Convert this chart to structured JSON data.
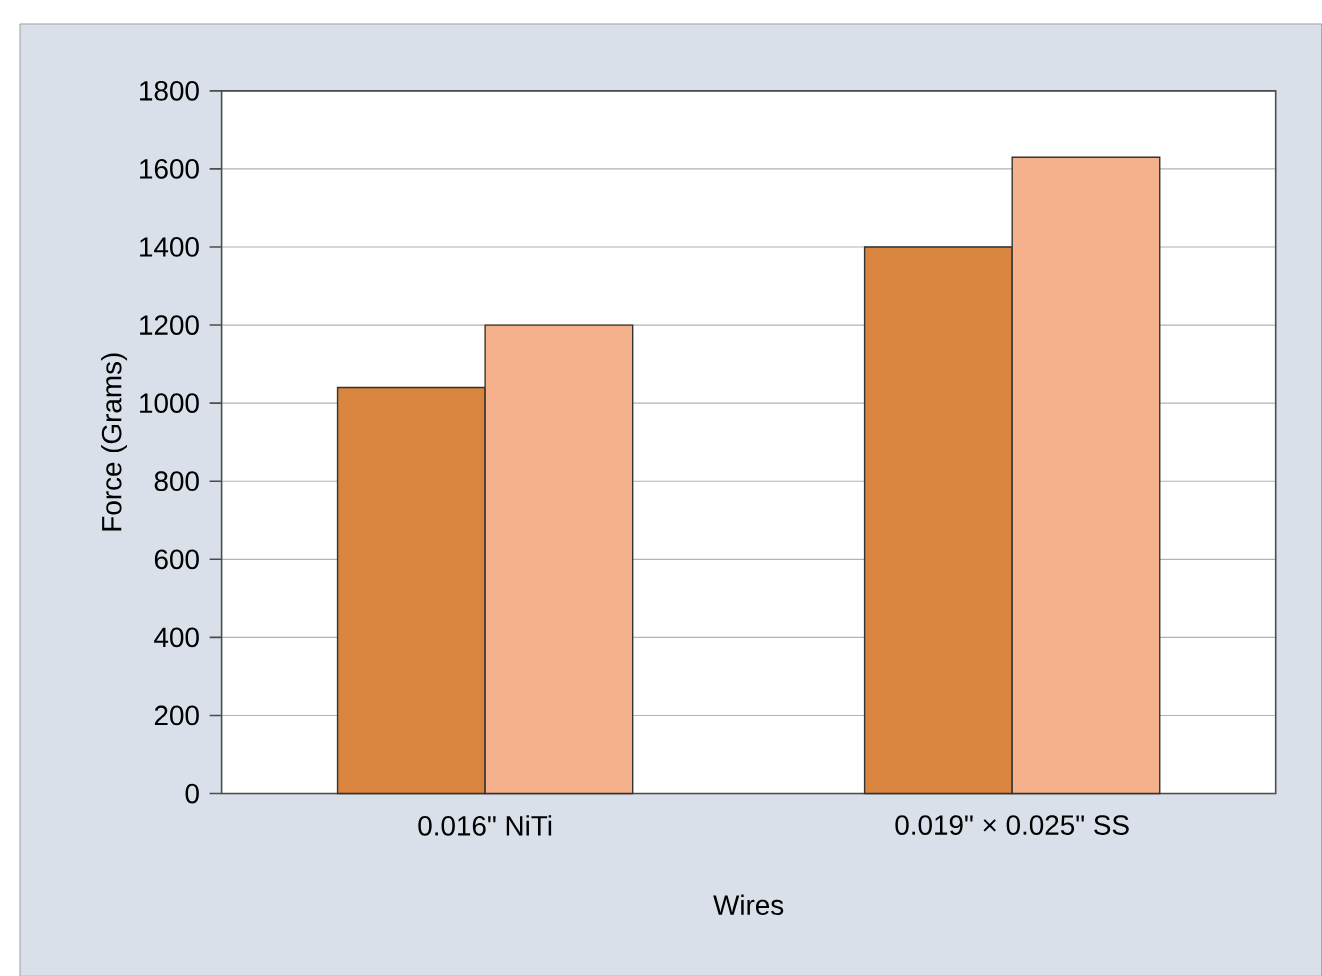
{
  "chart_data": {
    "type": "bar",
    "xlabel": "Wires",
    "ylabel": "Force (Grams)",
    "categories": [
      "0.016\" NiTi",
      "0.019\" × 0.025\" SS"
    ],
    "series": [
      {
        "color": "#d9843f",
        "values": [
          1040,
          1400
        ]
      },
      {
        "color": "#f5b08c",
        "values": [
          1200,
          1630
        ]
      }
    ],
    "ylim": [
      0,
      1800
    ],
    "yticks": [
      0,
      200,
      400,
      600,
      800,
      1000,
      1200,
      1400,
      1600,
      1800
    ],
    "grid": "y"
  }
}
